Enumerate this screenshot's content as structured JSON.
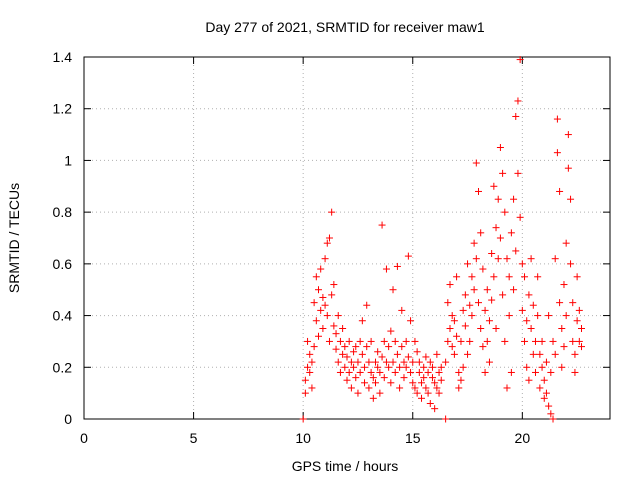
{
  "chart_data": {
    "type": "scatter",
    "title": "Day 277 of 2021, SRMTID for receiver maw1",
    "xlabel": "GPS time / hours",
    "ylabel": "SRMTID / TECUs",
    "xlim": [
      0,
      24
    ],
    "ylim": [
      0,
      1.4
    ],
    "grid": true,
    "marker": "+",
    "marker_color": "#ff0000",
    "xticks": [
      0,
      5,
      10,
      15,
      20
    ],
    "xtick_labels": [
      "0",
      "5",
      "10",
      "15",
      "20"
    ],
    "yticks": [
      0,
      0.2,
      0.4,
      0.6,
      0.8,
      1.0,
      1.2,
      1.4
    ],
    "ytick_labels": [
      "0",
      "0.2",
      "0.4",
      "0.6",
      "0.8",
      "1",
      "1.2",
      "1.4"
    ],
    "series": [
      {
        "name": "SRMTID",
        "points": [
          [
            10.0,
            0.0
          ],
          [
            10.1,
            0.1
          ],
          [
            10.1,
            0.15
          ],
          [
            10.2,
            0.2
          ],
          [
            10.2,
            0.3
          ],
          [
            10.3,
            0.18
          ],
          [
            10.3,
            0.25
          ],
          [
            10.4,
            0.22
          ],
          [
            10.4,
            0.12
          ],
          [
            10.5,
            0.28
          ],
          [
            10.5,
            0.45
          ],
          [
            10.6,
            0.55
          ],
          [
            10.6,
            0.38
          ],
          [
            10.7,
            0.5
          ],
          [
            10.7,
            0.32
          ],
          [
            10.8,
            0.42
          ],
          [
            10.8,
            0.58
          ],
          [
            10.9,
            0.47
          ],
          [
            10.9,
            0.35
          ],
          [
            11.0,
            0.44
          ],
          [
            11.0,
            0.62
          ],
          [
            11.1,
            0.68
          ],
          [
            11.1,
            0.4
          ],
          [
            11.2,
            0.7
          ],
          [
            11.2,
            0.3
          ],
          [
            11.3,
            0.8
          ],
          [
            11.3,
            0.48
          ],
          [
            11.4,
            0.36
          ],
          [
            11.4,
            0.52
          ],
          [
            11.5,
            0.27
          ],
          [
            11.5,
            0.33
          ],
          [
            11.6,
            0.22
          ],
          [
            11.6,
            0.4
          ],
          [
            11.7,
            0.3
          ],
          [
            11.7,
            0.18
          ],
          [
            11.8,
            0.25
          ],
          [
            11.8,
            0.35
          ],
          [
            11.9,
            0.2
          ],
          [
            11.9,
            0.28
          ],
          [
            12.0,
            0.15
          ],
          [
            12.0,
            0.24
          ],
          [
            12.1,
            0.3
          ],
          [
            12.1,
            0.18
          ],
          [
            12.2,
            0.22
          ],
          [
            12.2,
            0.12
          ],
          [
            12.3,
            0.26
          ],
          [
            12.3,
            0.2
          ],
          [
            12.4,
            0.16
          ],
          [
            12.4,
            0.28
          ],
          [
            12.5,
            0.22
          ],
          [
            12.5,
            0.1
          ],
          [
            12.6,
            0.3
          ],
          [
            12.6,
            0.18
          ],
          [
            12.7,
            0.25
          ],
          [
            12.7,
            0.38
          ],
          [
            12.8,
            0.2
          ],
          [
            12.8,
            0.14
          ],
          [
            12.9,
            0.44
          ],
          [
            12.9,
            0.28
          ],
          [
            13.0,
            0.22
          ],
          [
            13.0,
            0.12
          ],
          [
            13.1,
            0.18
          ],
          [
            13.1,
            0.3
          ],
          [
            13.2,
            0.08
          ],
          [
            13.2,
            0.16
          ],
          [
            13.3,
            0.22
          ],
          [
            13.3,
            0.14
          ],
          [
            13.4,
            0.2
          ],
          [
            13.4,
            0.26
          ],
          [
            13.5,
            0.18
          ],
          [
            13.5,
            0.1
          ],
          [
            13.6,
            0.75
          ],
          [
            13.6,
            0.24
          ],
          [
            13.7,
            0.3
          ],
          [
            13.7,
            0.16
          ],
          [
            13.8,
            0.58
          ],
          [
            13.8,
            0.22
          ],
          [
            13.9,
            0.2
          ],
          [
            13.9,
            0.28
          ],
          [
            14.0,
            0.14
          ],
          [
            14.0,
            0.34
          ],
          [
            14.1,
            0.22
          ],
          [
            14.1,
            0.5
          ],
          [
            14.2,
            0.3
          ],
          [
            14.2,
            0.18
          ],
          [
            14.3,
            0.25
          ],
          [
            14.3,
            0.59
          ],
          [
            14.4,
            0.2
          ],
          [
            14.4,
            0.12
          ],
          [
            14.5,
            0.42
          ],
          [
            14.5,
            0.28
          ],
          [
            14.6,
            0.22
          ],
          [
            14.6,
            0.16
          ],
          [
            14.7,
            0.3
          ],
          [
            14.7,
            0.2
          ],
          [
            14.8,
            0.24
          ],
          [
            14.8,
            0.63
          ],
          [
            14.9,
            0.38
          ],
          [
            14.9,
            0.18
          ],
          [
            15.0,
            0.22
          ],
          [
            15.0,
            0.14
          ],
          [
            15.1,
            0.3
          ],
          [
            15.1,
            0.12
          ],
          [
            15.2,
            0.26
          ],
          [
            15.2,
            0.1
          ],
          [
            15.3,
            0.18
          ],
          [
            15.3,
            0.22
          ],
          [
            15.4,
            0.14
          ],
          [
            15.4,
            0.08
          ],
          [
            15.5,
            0.2
          ],
          [
            15.5,
            0.16
          ],
          [
            15.6,
            0.24
          ],
          [
            15.6,
            0.12
          ],
          [
            15.7,
            0.18
          ],
          [
            15.7,
            0.1
          ],
          [
            15.8,
            0.22
          ],
          [
            15.8,
            0.06
          ],
          [
            15.9,
            0.16
          ],
          [
            15.9,
            0.2
          ],
          [
            16.0,
            0.14
          ],
          [
            16.0,
            0.04
          ],
          [
            16.1,
            0.25
          ],
          [
            16.1,
            0.12
          ],
          [
            16.2,
            0.18
          ],
          [
            16.2,
            0.1
          ],
          [
            16.3,
            0.2
          ],
          [
            16.3,
            0.15
          ],
          [
            16.5,
            0.0
          ],
          [
            16.5,
            0.22
          ],
          [
            16.6,
            0.3
          ],
          [
            16.6,
            0.45
          ],
          [
            16.7,
            0.35
          ],
          [
            16.7,
            0.52
          ],
          [
            16.8,
            0.28
          ],
          [
            16.8,
            0.4
          ],
          [
            16.9,
            0.25
          ],
          [
            16.9,
            0.38
          ],
          [
            17.0,
            0.55
          ],
          [
            17.0,
            0.32
          ],
          [
            17.1,
            0.18
          ],
          [
            17.1,
            0.12
          ],
          [
            17.2,
            0.15
          ],
          [
            17.2,
            0.3
          ],
          [
            17.3,
            0.42
          ],
          [
            17.3,
            0.2
          ],
          [
            17.4,
            0.48
          ],
          [
            17.4,
            0.36
          ],
          [
            17.5,
            0.25
          ],
          [
            17.5,
            0.6
          ],
          [
            17.6,
            0.44
          ],
          [
            17.6,
            0.3
          ],
          [
            17.7,
            0.55
          ],
          [
            17.7,
            0.4
          ],
          [
            17.8,
            0.68
          ],
          [
            17.8,
            0.5
          ],
          [
            17.9,
            0.99
          ],
          [
            17.9,
            0.62
          ],
          [
            18.0,
            0.88
          ],
          [
            18.0,
            0.45
          ],
          [
            18.1,
            0.72
          ],
          [
            18.1,
            0.35
          ],
          [
            18.2,
            0.58
          ],
          [
            18.2,
            0.28
          ],
          [
            18.3,
            0.42
          ],
          [
            18.3,
            0.18
          ],
          [
            18.4,
            0.3
          ],
          [
            18.4,
            0.5
          ],
          [
            18.5,
            0.38
          ],
          [
            18.5,
            0.22
          ],
          [
            18.6,
            0.64
          ],
          [
            18.6,
            0.46
          ],
          [
            18.7,
            0.9
          ],
          [
            18.7,
            0.55
          ],
          [
            18.8,
            0.74
          ],
          [
            18.8,
            0.35
          ],
          [
            18.9,
            0.62
          ],
          [
            18.9,
            0.85
          ],
          [
            19.0,
            1.05
          ],
          [
            19.0,
            0.7
          ],
          [
            19.1,
            0.95
          ],
          [
            19.1,
            0.48
          ],
          [
            19.2,
            0.8
          ],
          [
            19.2,
            0.3
          ],
          [
            19.3,
            0.62
          ],
          [
            19.3,
            0.12
          ],
          [
            19.4,
            0.55
          ],
          [
            19.4,
            0.4
          ],
          [
            19.5,
            0.72
          ],
          [
            19.5,
            0.18
          ],
          [
            19.6,
            0.85
          ],
          [
            19.6,
            0.5
          ],
          [
            19.7,
            1.17
          ],
          [
            19.7,
            0.65
          ],
          [
            19.8,
            1.23
          ],
          [
            19.8,
            0.95
          ],
          [
            19.9,
            1.39
          ],
          [
            19.9,
            0.78
          ],
          [
            20.0,
            0.6
          ],
          [
            20.0,
            0.42
          ],
          [
            20.1,
            0.55
          ],
          [
            20.1,
            0.3
          ],
          [
            20.2,
            0.38
          ],
          [
            20.2,
            0.2
          ],
          [
            20.3,
            0.48
          ],
          [
            20.3,
            0.15
          ],
          [
            20.4,
            0.35
          ],
          [
            20.4,
            0.62
          ],
          [
            20.5,
            0.44
          ],
          [
            20.5,
            0.25
          ],
          [
            20.6,
            0.3
          ],
          [
            20.6,
            0.18
          ],
          [
            20.7,
            0.4
          ],
          [
            20.7,
            0.55
          ],
          [
            20.8,
            0.25
          ],
          [
            20.8,
            0.12
          ],
          [
            20.9,
            0.2
          ],
          [
            20.9,
            0.3
          ],
          [
            21.0,
            0.15
          ],
          [
            21.0,
            0.08
          ],
          [
            21.1,
            0.22
          ],
          [
            21.1,
            0.1
          ],
          [
            21.2,
            0.4
          ],
          [
            21.2,
            0.05
          ],
          [
            21.3,
            0.18
          ],
          [
            21.3,
            0.02
          ],
          [
            21.4,
            0.3
          ],
          [
            21.4,
            0.0
          ],
          [
            21.5,
            0.62
          ],
          [
            21.5,
            0.25
          ],
          [
            21.6,
            1.16
          ],
          [
            21.6,
            1.03
          ],
          [
            21.7,
            0.88
          ],
          [
            21.7,
            0.45
          ],
          [
            21.8,
            0.35
          ],
          [
            21.8,
            0.2
          ],
          [
            21.9,
            0.52
          ],
          [
            21.9,
            0.28
          ],
          [
            22.0,
            0.68
          ],
          [
            22.0,
            0.4
          ],
          [
            22.1,
            1.1
          ],
          [
            22.1,
            0.97
          ],
          [
            22.2,
            0.85
          ],
          [
            22.2,
            0.6
          ],
          [
            22.3,
            0.45
          ],
          [
            22.3,
            0.3
          ],
          [
            22.4,
            0.25
          ],
          [
            22.4,
            0.18
          ],
          [
            22.5,
            0.38
          ],
          [
            22.5,
            0.55
          ],
          [
            22.6,
            0.3
          ],
          [
            22.6,
            0.42
          ],
          [
            22.7,
            0.28
          ],
          [
            22.7,
            0.35
          ]
        ]
      }
    ]
  }
}
